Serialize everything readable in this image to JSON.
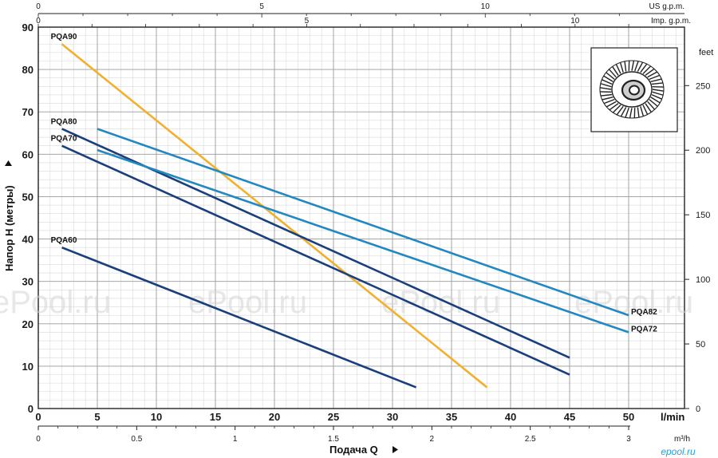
{
  "chart_data": {
    "type": "line",
    "ylabel": "Напор H (метры)",
    "xlabel": "Подача Q",
    "x_unit": "l/min",
    "x2_unit": "m³/h",
    "top_unit_us": "US g.p.m.",
    "top_unit_imp": "Imp. g.p.m.",
    "right_unit": "feet",
    "xlim": [
      0,
      52
    ],
    "ylim": [
      0,
      90
    ],
    "x_ticks": [
      "0",
      "5",
      "10",
      "15",
      "20",
      "25",
      "30",
      "35",
      "40",
      "45",
      "50"
    ],
    "y_ticks": [
      "0",
      "10",
      "20",
      "30",
      "40",
      "50",
      "60",
      "70",
      "80",
      "90"
    ],
    "x2_ticks": [
      "0",
      "0.5",
      "1",
      "1.5",
      "2",
      "2.5",
      "3"
    ],
    "us_ticks": [
      "0",
      "5",
      "10"
    ],
    "imp_ticks": [
      "0",
      "5",
      "10"
    ],
    "feet_ticks": [
      "0",
      "50",
      "100",
      "150",
      "200",
      "250",
      "feet"
    ],
    "grid": true,
    "series": [
      {
        "name": "PQA90",
        "color": "#f0b030",
        "x": [
          2,
          38
        ],
        "y": [
          86,
          5
        ]
      },
      {
        "name": "PQA80",
        "color": "#1a3f7a",
        "x": [
          2,
          45
        ],
        "y": [
          66,
          12
        ]
      },
      {
        "name": "PQA70",
        "color": "#1a3f7a",
        "x": [
          2,
          45
        ],
        "y": [
          62,
          8
        ]
      },
      {
        "name": "PQA60",
        "color": "#1a3f7a",
        "x": [
          2,
          32
        ],
        "y": [
          38,
          5
        ]
      },
      {
        "name": "PQA82",
        "color": "#2387c0",
        "x": [
          5,
          50
        ],
        "y": [
          66,
          22
        ]
      },
      {
        "name": "PQA72",
        "color": "#2387c0",
        "x": [
          5,
          50
        ],
        "y": [
          61,
          18
        ]
      }
    ]
  },
  "watermarks": [
    "ePool.ru",
    "ePool.ru",
    "ePool.ru",
    "ePool.ru"
  ],
  "logo": "epool.ru"
}
